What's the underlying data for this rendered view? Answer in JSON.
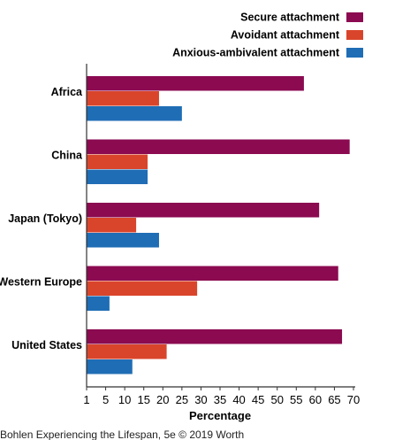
{
  "chart_data": {
    "type": "bar",
    "orientation": "horizontal",
    "categories": [
      "Africa",
      "China",
      "Japan (Tokyo)",
      "Western Europe",
      "United States"
    ],
    "series": [
      {
        "name": "Secure attachment",
        "color": "#8b0a50",
        "values": [
          57,
          69,
          61,
          66,
          67
        ]
      },
      {
        "name": "Avoidant attachment",
        "color": "#d9452b",
        "values": [
          19,
          16,
          13,
          29,
          21
        ]
      },
      {
        "name": "Anxious-ambivalent attachment",
        "color": "#1f6db5",
        "values": [
          25,
          16,
          19,
          6,
          12
        ]
      }
    ],
    "xlabel": "Percentage",
    "ylabel": "",
    "xlim": [
      0,
      70
    ],
    "ticks": [
      "1",
      "5",
      "10",
      "15",
      "20",
      "25",
      "30",
      "35",
      "40",
      "45",
      "50",
      "55",
      "60",
      "65",
      "70"
    ],
    "grid": false,
    "legend_position": "top-right",
    "caption": "Bohlen Experiencing the Lifespan, 5e © 2019 Worth"
  }
}
